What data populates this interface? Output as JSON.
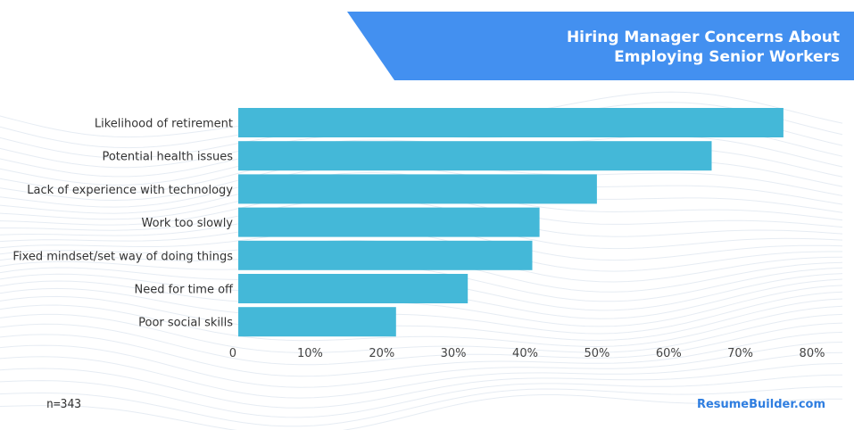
{
  "banner": {
    "title_line1": "Hiring Manager Concerns About",
    "title_line2": "Employing Senior Workers",
    "color": "#4390f0"
  },
  "footer": {
    "sample_size": "n=343",
    "brand": "ResumeBuilder.com",
    "brand_color": "#2f7ee0"
  },
  "chart_data": {
    "type": "bar",
    "orientation": "horizontal",
    "categories": [
      "Likelihood of retirement",
      "Potential health issues",
      "Lack of experience with technology",
      "Work too slowly",
      "Fixed mindset/set way of doing things",
      "Need for time off",
      "Poor social skills"
    ],
    "values": [
      76,
      66,
      50,
      42,
      41,
      32,
      22
    ],
    "unit": "%",
    "xlim": [
      0,
      80
    ],
    "xticks": [
      "0",
      "10%",
      "20%",
      "30%",
      "40%",
      "50%",
      "60%",
      "70%",
      "80%"
    ],
    "bar_color": "#44b8d8",
    "grid": false
  }
}
